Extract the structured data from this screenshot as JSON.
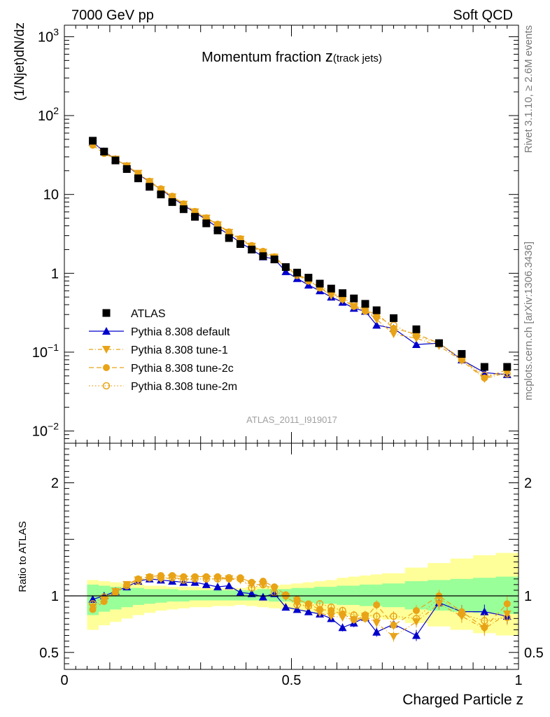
{
  "header": {
    "left": "7000 GeV pp",
    "right": "Soft QCD"
  },
  "side_labels": {
    "rivet": "Rivet 3.1.10, ≥ 2.6M events",
    "mcplots": "mcplots.cern.ch [arXiv:1306.3436]"
  },
  "colors": {
    "atlas": "#000000",
    "default": "#0000cc",
    "tune": "#e8a317",
    "band_inner": "#99ff99",
    "band_outer": "#ffff99"
  },
  "chart_data": {
    "type": "scatter",
    "title_main": "Momentum fraction ",
    "title_z": "z",
    "title_sub": "(track jets)",
    "ylabel": "(1/Njet)dN/dz",
    "xlabel": "Charged Particle z",
    "watermark": "ATLAS_2011_I919017",
    "yscale": "log",
    "xlim": [
      0,
      1
    ],
    "ylim": [
      0.007,
      1400
    ],
    "x_ticks": [
      "0",
      "0.5",
      "1"
    ],
    "y_ticks": [
      "10^3",
      "10^2",
      "10",
      "1",
      "10^-1",
      "10^-2"
    ],
    "legend": {
      "position": "lower-left",
      "entries": [
        "ATLAS",
        "Pythia 8.308 default",
        "Pythia 8.308 tune-1",
        "Pythia 8.308 tune-2c",
        "Pythia 8.308 tune-2m"
      ]
    },
    "x": [
      0.0625,
      0.0875,
      0.1125,
      0.1375,
      0.1625,
      0.1875,
      0.2125,
      0.2375,
      0.2625,
      0.2875,
      0.3125,
      0.3375,
      0.3625,
      0.3875,
      0.4125,
      0.4375,
      0.4625,
      0.4875,
      0.5125,
      0.5375,
      0.5625,
      0.5875,
      0.6125,
      0.6375,
      0.6625,
      0.6875,
      0.725,
      0.775,
      0.825,
      0.875,
      0.925,
      0.975
    ],
    "series": [
      {
        "name": "ATLAS",
        "values": [
          48,
          35,
          27,
          21,
          16,
          12.5,
          10,
          8,
          6.5,
          5.2,
          4.3,
          3.5,
          2.8,
          2.35,
          2.0,
          1.65,
          1.5,
          1.2,
          1.02,
          0.88,
          0.74,
          0.64,
          0.56,
          0.48,
          0.41,
          0.34,
          0.27,
          0.195,
          0.13,
          0.095,
          0.065,
          0.065
        ]
      },
      {
        "name": "Pythia 8.308 default",
        "values": [
          46,
          35,
          28,
          23,
          18,
          14.5,
          11.6,
          9.1,
          7.3,
          5.9,
          4.8,
          3.8,
          3.1,
          2.45,
          2.0,
          1.62,
          1.52,
          1.05,
          0.86,
          0.71,
          0.6,
          0.5,
          0.43,
          0.36,
          0.33,
          0.22,
          0.2,
          0.125,
          0.13,
          0.08,
          0.055,
          0.052
        ]
      },
      {
        "name": "Pythia 8.308 tune-1",
        "values": [
          43,
          34,
          28,
          23,
          18.5,
          14.5,
          11.5,
          9.3,
          7.5,
          6.0,
          5.0,
          4.1,
          3.3,
          2.7,
          2.2,
          1.85,
          1.6,
          1.2,
          0.95,
          0.8,
          0.66,
          0.52,
          0.46,
          0.38,
          0.34,
          0.26,
          0.17,
          0.15,
          0.12,
          0.078,
          0.046,
          0.055
        ]
      },
      {
        "name": "Pythia 8.308 tune-2c",
        "values": [
          42,
          33,
          28,
          23,
          18.5,
          14.7,
          11.8,
          9.5,
          7.6,
          6.1,
          5.05,
          4.2,
          3.35,
          2.75,
          2.25,
          1.9,
          1.62,
          1.21,
          0.99,
          0.82,
          0.65,
          0.56,
          0.47,
          0.38,
          0.33,
          0.31,
          0.2,
          0.17,
          0.13,
          0.082,
          0.047,
          0.06
        ]
      },
      {
        "name": "Pythia 8.308 tune-2m",
        "values": [
          45,
          35,
          28,
          23,
          18,
          14.4,
          11.6,
          9.3,
          7.4,
          6.0,
          4.95,
          4.1,
          3.3,
          2.7,
          2.15,
          1.82,
          1.55,
          1.2,
          0.94,
          0.8,
          0.69,
          0.58,
          0.49,
          0.4,
          0.34,
          0.28,
          0.22,
          0.16,
          0.13,
          0.08,
          0.051,
          0.053
        ]
      }
    ],
    "ratio": {
      "ylabel": "Ratio to ATLAS",
      "ylim": [
        0.35,
        2.35
      ],
      "y_ticks": [
        "2",
        "1",
        "0.5"
      ],
      "reference_line": 1,
      "band_edges": [
        0.05,
        0.075,
        0.1,
        0.125,
        0.15,
        0.175,
        0.2,
        0.225,
        0.25,
        0.275,
        0.3,
        0.325,
        0.35,
        0.375,
        0.4,
        0.425,
        0.45,
        0.475,
        0.5,
        0.525,
        0.55,
        0.575,
        0.6,
        0.625,
        0.65,
        0.675,
        0.7,
        0.75,
        0.8,
        0.85,
        0.9,
        0.95,
        1.0
      ],
      "band_inner": [
        [
          0.83,
          1.1
        ],
        [
          0.86,
          1.09
        ],
        [
          0.88,
          1.08
        ],
        [
          0.9,
          1.07
        ],
        [
          0.92,
          1.07
        ],
        [
          0.93,
          1.06
        ],
        [
          0.94,
          1.06
        ],
        [
          0.95,
          1.06
        ],
        [
          0.95,
          1.05
        ],
        [
          0.96,
          1.05
        ],
        [
          0.96,
          1.05
        ],
        [
          0.96,
          1.05
        ],
        [
          0.96,
          1.05
        ],
        [
          0.96,
          1.05
        ],
        [
          0.96,
          1.05
        ],
        [
          0.96,
          1.06
        ],
        [
          0.95,
          1.06
        ],
        [
          0.95,
          1.06
        ],
        [
          0.94,
          1.07
        ],
        [
          0.94,
          1.07
        ],
        [
          0.93,
          1.08
        ],
        [
          0.93,
          1.08
        ],
        [
          0.92,
          1.09
        ],
        [
          0.92,
          1.09
        ],
        [
          0.91,
          1.1
        ],
        [
          0.91,
          1.1
        ],
        [
          0.9,
          1.11
        ],
        [
          0.88,
          1.13
        ],
        [
          0.87,
          1.14
        ],
        [
          0.86,
          1.15
        ],
        [
          0.85,
          1.16
        ],
        [
          0.84,
          1.17
        ]
      ],
      "band_outer": [
        [
          0.7,
          1.14
        ],
        [
          0.74,
          1.13
        ],
        [
          0.77,
          1.12
        ],
        [
          0.8,
          1.11
        ],
        [
          0.83,
          1.1
        ],
        [
          0.85,
          1.09
        ],
        [
          0.87,
          1.09
        ],
        [
          0.88,
          1.08
        ],
        [
          0.89,
          1.08
        ],
        [
          0.9,
          1.08
        ],
        [
          0.9,
          1.07
        ],
        [
          0.91,
          1.07
        ],
        [
          0.91,
          1.07
        ],
        [
          0.92,
          1.07
        ],
        [
          0.91,
          1.08
        ],
        [
          0.9,
          1.08
        ],
        [
          0.89,
          1.09
        ],
        [
          0.88,
          1.1
        ],
        [
          0.87,
          1.11
        ],
        [
          0.86,
          1.12
        ],
        [
          0.85,
          1.13
        ],
        [
          0.84,
          1.14
        ],
        [
          0.83,
          1.16
        ],
        [
          0.82,
          1.17
        ],
        [
          0.81,
          1.18
        ],
        [
          0.8,
          1.19
        ],
        [
          0.79,
          1.2
        ],
        [
          0.76,
          1.25
        ],
        [
          0.73,
          1.29
        ],
        [
          0.7,
          1.33
        ],
        [
          0.67,
          1.36
        ],
        [
          0.65,
          1.38
        ]
      ],
      "series": [
        {
          "name": "Pythia 8.308 default",
          "values": [
            0.97,
            1.0,
            1.04,
            1.08,
            1.13,
            1.15,
            1.14,
            1.13,
            1.12,
            1.12,
            1.1,
            1.08,
            1.09,
            1.03,
            1.02,
            0.99,
            1.02,
            0.9,
            0.88,
            0.86,
            0.84,
            0.8,
            0.72,
            0.76,
            0.81,
            0.68,
            0.75,
            0.65,
            0.94,
            0.86,
            0.86,
            0.82
          ]
        },
        {
          "name": "Pythia 8.308 tune-1",
          "values": [
            0.9,
            0.97,
            1.04,
            1.1,
            1.14,
            1.16,
            1.15,
            1.16,
            1.15,
            1.15,
            1.15,
            1.15,
            1.15,
            1.14,
            1.1,
            1.1,
            1.06,
            0.99,
            0.93,
            0.91,
            0.85,
            0.82,
            0.81,
            0.79,
            0.82,
            0.76,
            0.64,
            0.77,
            0.93,
            0.82,
            0.71,
            0.84
          ]
        },
        {
          "name": "Pythia 8.308 tune-2c",
          "values": [
            0.88,
            0.95,
            1.03,
            1.1,
            1.15,
            1.17,
            1.18,
            1.18,
            1.17,
            1.17,
            1.17,
            1.17,
            1.15,
            1.16,
            1.12,
            1.13,
            1.08,
            1.01,
            0.97,
            0.93,
            0.88,
            0.87,
            0.84,
            0.79,
            0.8,
            0.92,
            0.74,
            0.87,
            1.0,
            0.86,
            0.72,
            0.93
          ]
        },
        {
          "name": "Pythia 8.308 tune-2m",
          "values": [
            0.93,
            0.99,
            1.03,
            1.09,
            1.13,
            1.16,
            1.16,
            1.16,
            1.14,
            1.15,
            1.15,
            1.15,
            1.16,
            1.15,
            1.07,
            1.1,
            1.03,
            1.0,
            0.92,
            0.91,
            0.93,
            0.9,
            0.87,
            0.83,
            0.83,
            0.82,
            0.82,
            0.8,
            0.98,
            0.84,
            0.78,
            0.81
          ]
        }
      ]
    }
  }
}
